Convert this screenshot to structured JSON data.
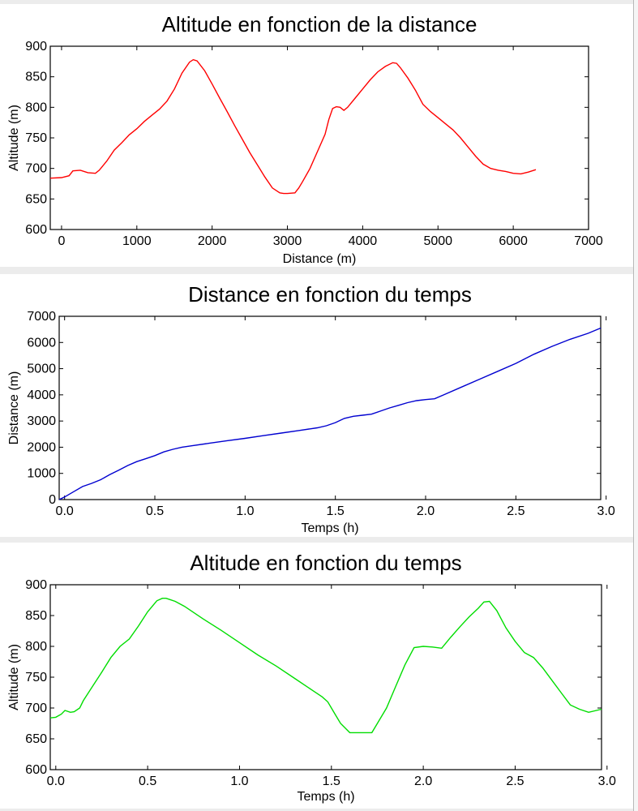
{
  "chart_data": [
    {
      "type": "line",
      "title": "Altitude en fonction de la distance",
      "xlabel": "Distance (m)",
      "ylabel": "Altitude (m)",
      "xlim": [
        -150,
        7000
      ],
      "ylim": [
        600,
        900
      ],
      "xticks": [
        0,
        1000,
        2000,
        3000,
        4000,
        5000,
        6000,
        7000
      ],
      "xtick_labels": [
        "0",
        "1000",
        "2000",
        "3000",
        "4000",
        "5000",
        "6000",
        "7000"
      ],
      "yticks": [
        600,
        650,
        700,
        750,
        800,
        850,
        900
      ],
      "ytick_labels": [
        "600",
        "650",
        "700",
        "750",
        "800",
        "850",
        "900"
      ],
      "grid": false,
      "series": [
        {
          "color": "#ff0000",
          "x": [
            -150,
            0,
            100,
            150,
            250,
            350,
            450,
            500,
            600,
            700,
            800,
            900,
            1000,
            1100,
            1200,
            1300,
            1400,
            1500,
            1600,
            1700,
            1750,
            1800,
            1900,
            2000,
            2100,
            2200,
            2300,
            2400,
            2500,
            2600,
            2700,
            2800,
            2900,
            2950,
            3000,
            3100,
            3150,
            3200,
            3300,
            3400,
            3500,
            3550,
            3600,
            3650,
            3700,
            3750,
            3800,
            3900,
            4000,
            4100,
            4200,
            4300,
            4400,
            4450,
            4500,
            4600,
            4700,
            4800,
            4900,
            5000,
            5100,
            5200,
            5300,
            5400,
            5500,
            5600,
            5700,
            5800,
            5900,
            6000,
            6100,
            6200,
            6300
          ],
          "y": [
            684,
            685,
            688,
            696,
            697,
            693,
            692,
            697,
            712,
            730,
            742,
            755,
            765,
            777,
            787,
            797,
            810,
            830,
            856,
            874,
            878,
            876,
            860,
            838,
            815,
            793,
            770,
            748,
            726,
            706,
            686,
            668,
            660,
            659,
            659,
            660,
            668,
            678,
            700,
            728,
            756,
            780,
            798,
            801,
            800,
            795,
            800,
            815,
            830,
            845,
            858,
            867,
            873,
            872,
            865,
            848,
            828,
            805,
            793,
            783,
            773,
            763,
            750,
            735,
            720,
            707,
            700,
            697,
            695,
            692,
            691,
            694,
            698
          ]
        }
      ]
    },
    {
      "type": "line",
      "title": "Distance en fonction du temps",
      "xlabel": "Temps (h)",
      "ylabel": "Distance (m)",
      "xlim": [
        -0.03,
        2.97
      ],
      "ylim": [
        0,
        7000
      ],
      "xticks": [
        0.0,
        0.5,
        1.0,
        1.5,
        2.0,
        2.5,
        3.0
      ],
      "xtick_labels": [
        "0.0",
        "0.5",
        "1.0",
        "1.5",
        "2.0",
        "2.5",
        "3.0"
      ],
      "yticks": [
        0,
        1000,
        2000,
        3000,
        4000,
        5000,
        6000,
        7000
      ],
      "ytick_labels": [
        "0",
        "1000",
        "2000",
        "3000",
        "4000",
        "5000",
        "6000",
        "7000"
      ],
      "grid": false,
      "series": [
        {
          "color": "#0000d0",
          "x": [
            -0.03,
            0.0,
            0.05,
            0.1,
            0.15,
            0.2,
            0.25,
            0.3,
            0.35,
            0.4,
            0.45,
            0.5,
            0.55,
            0.6,
            0.65,
            0.7,
            0.8,
            0.9,
            1.0,
            1.1,
            1.2,
            1.3,
            1.4,
            1.45,
            1.5,
            1.55,
            1.6,
            1.65,
            1.7,
            1.75,
            1.8,
            1.85,
            1.9,
            1.95,
            2.0,
            2.05,
            2.1,
            2.2,
            2.3,
            2.4,
            2.5,
            2.6,
            2.7,
            2.8,
            2.9,
            2.97
          ],
          "y": [
            0,
            100,
            300,
            500,
            620,
            760,
            950,
            1120,
            1300,
            1450,
            1560,
            1680,
            1820,
            1920,
            2000,
            2050,
            2150,
            2250,
            2340,
            2440,
            2540,
            2640,
            2740,
            2820,
            2940,
            3100,
            3180,
            3220,
            3260,
            3380,
            3500,
            3600,
            3700,
            3780,
            3820,
            3850,
            4000,
            4300,
            4600,
            4900,
            5200,
            5550,
            5850,
            6120,
            6350,
            6550
          ]
        }
      ]
    },
    {
      "type": "line",
      "title": "Altitude en fonction du temps",
      "xlabel": "Temps (h)",
      "ylabel": "Altitude (m)",
      "xlim": [
        -0.03,
        2.97
      ],
      "ylim": [
        600,
        900
      ],
      "xticks": [
        0.0,
        0.5,
        1.0,
        1.5,
        2.0,
        2.5,
        3.0
      ],
      "xtick_labels": [
        "0.0",
        "0.5",
        "1.0",
        "1.5",
        "2.0",
        "2.5",
        "3.0"
      ],
      "yticks": [
        600,
        650,
        700,
        750,
        800,
        850,
        900
      ],
      "ytick_labels": [
        "600",
        "650",
        "700",
        "750",
        "800",
        "850",
        "900"
      ],
      "grid": false,
      "series": [
        {
          "color": "#00dd00",
          "x": [
            -0.03,
            0.0,
            0.03,
            0.05,
            0.08,
            0.1,
            0.13,
            0.15,
            0.2,
            0.25,
            0.3,
            0.35,
            0.4,
            0.45,
            0.5,
            0.55,
            0.58,
            0.6,
            0.62,
            0.65,
            0.7,
            0.8,
            0.9,
            1.0,
            1.1,
            1.2,
            1.3,
            1.4,
            1.45,
            1.48,
            1.5,
            1.52,
            1.55,
            1.6,
            1.65,
            1.7,
            1.72,
            1.75,
            1.8,
            1.85,
            1.9,
            1.95,
            2.0,
            2.05,
            2.1,
            2.15,
            2.2,
            2.25,
            2.3,
            2.33,
            2.36,
            2.4,
            2.45,
            2.5,
            2.55,
            2.6,
            2.65,
            2.7,
            2.75,
            2.8,
            2.85,
            2.9,
            2.97
          ],
          "y": [
            684,
            685,
            690,
            696,
            693,
            694,
            700,
            712,
            735,
            758,
            782,
            800,
            812,
            833,
            856,
            874,
            878,
            878,
            876,
            873,
            865,
            845,
            826,
            806,
            786,
            768,
            748,
            728,
            718,
            710,
            700,
            690,
            675,
            660,
            660,
            660,
            660,
            675,
            700,
            735,
            770,
            798,
            800,
            799,
            797,
            815,
            832,
            848,
            862,
            872,
            873,
            858,
            830,
            808,
            790,
            782,
            765,
            745,
            725,
            705,
            698,
            693,
            698
          ]
        }
      ]
    }
  ]
}
